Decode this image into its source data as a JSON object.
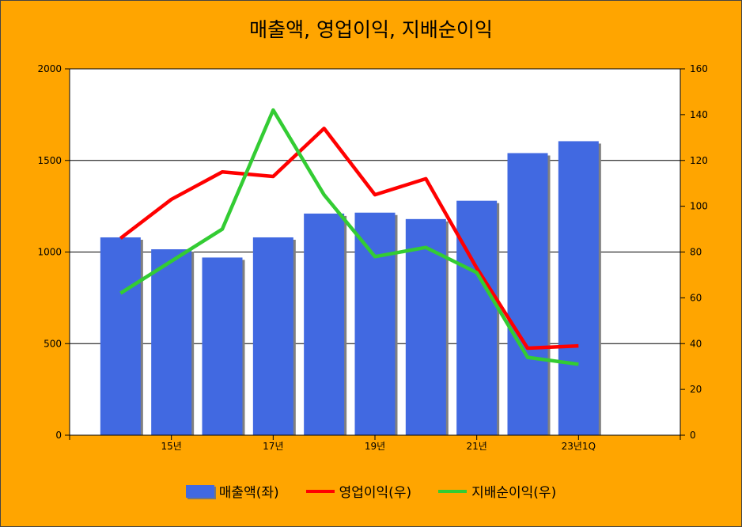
{
  "chart_data": {
    "type": "bar",
    "title": "매출액, 영업이익, 지배순이익",
    "x_tick_labels": [
      "15년",
      "17년",
      "19년",
      "21년",
      "23년1Q"
    ],
    "y_left": {
      "lim": [
        0,
        2000
      ],
      "ticks": [
        0,
        500,
        1000,
        1500,
        2000
      ]
    },
    "y_right": {
      "lim": [
        0,
        160
      ],
      "ticks": [
        0,
        20,
        40,
        60,
        80,
        100,
        120,
        140,
        160
      ]
    },
    "grid": true,
    "legend_position": "bottom",
    "series": [
      {
        "name": "매출액(좌)",
        "type": "bar",
        "axis": "left",
        "color": "#4169E1",
        "values": [
          1080,
          1015,
          970,
          1080,
          1210,
          1215,
          1180,
          1280,
          1540,
          1605
        ]
      },
      {
        "name": "영업이익(우)",
        "type": "line",
        "axis": "right",
        "color": "#FF0000",
        "values": [
          86,
          103,
          115,
          113,
          134,
          105,
          112,
          73,
          38,
          39
        ]
      },
      {
        "name": "지배순이익(우)",
        "type": "line",
        "axis": "right",
        "color": "#33CC33",
        "values": [
          62,
          76,
          90,
          142,
          105,
          78,
          82,
          71,
          34,
          31
        ]
      }
    ]
  }
}
